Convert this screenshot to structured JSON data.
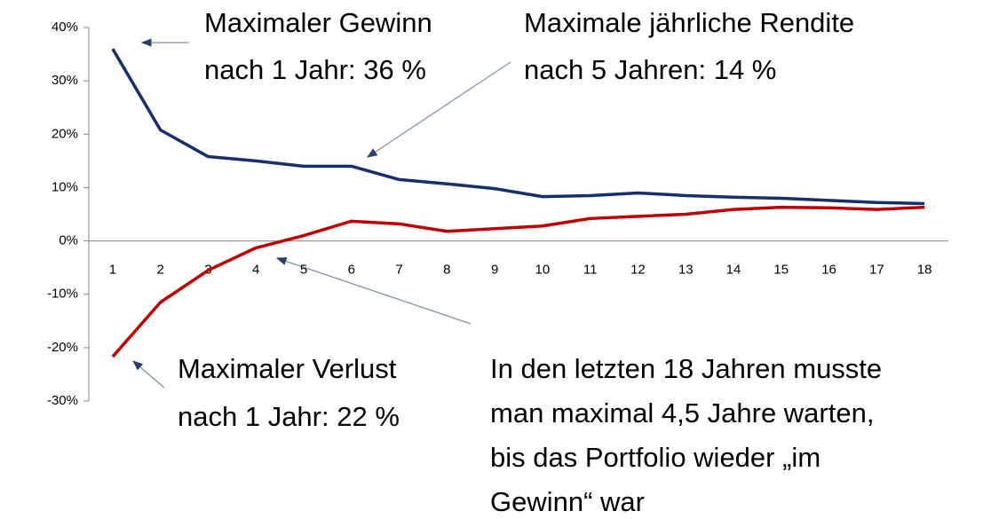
{
  "chart_data": {
    "type": "line",
    "categories": [
      "1",
      "2",
      "3",
      "4",
      "5",
      "6",
      "7",
      "8",
      "9",
      "10",
      "11",
      "12",
      "13",
      "14",
      "15",
      "16",
      "17",
      "18"
    ],
    "series": [
      {
        "color": "#17306b",
        "values": [
          36,
          20.8,
          15.8,
          15,
          14,
          14,
          11.5,
          10.7,
          9.8,
          8.3,
          8.5,
          9,
          8.5,
          8.2,
          8,
          7.6,
          7.2,
          7
        ]
      },
      {
        "color": "#c00000",
        "values": [
          -21.7,
          -11.5,
          -5.5,
          -1.3,
          1,
          3.7,
          3.2,
          1.8,
          2.3,
          2.8,
          4.2,
          4.6,
          5,
          5.9,
          6.3,
          6.2,
          5.9,
          6.3
        ]
      }
    ],
    "ylim": [
      -30,
      40
    ],
    "yticks": [
      {
        "value": -30,
        "label": "-30%"
      },
      {
        "value": -20,
        "label": "-20%"
      },
      {
        "value": -10,
        "label": "-10%"
      },
      {
        "value": 0,
        "label": "0%"
      },
      {
        "value": 10,
        "label": "10%"
      },
      {
        "value": 20,
        "label": "20%"
      },
      {
        "value": 30,
        "label": "30%"
      },
      {
        "value": 40,
        "label": "40%"
      }
    ],
    "annotations": [
      [
        "Maximaler Gewinn",
        "nach 1 Jahr: 36 %"
      ],
      [
        "Maximale jährliche Rendite",
        "nach 5 Jahren: 14 %"
      ],
      [
        "Maximaler Verlust",
        "nach 1 Jahr: 22 %"
      ],
      [
        "In den letzten 18 Jahren musste",
        "man maximal 4,5 Jahre warten,",
        "bis das Portfolio wieder „im",
        "Gewinn“ war"
      ]
    ]
  }
}
